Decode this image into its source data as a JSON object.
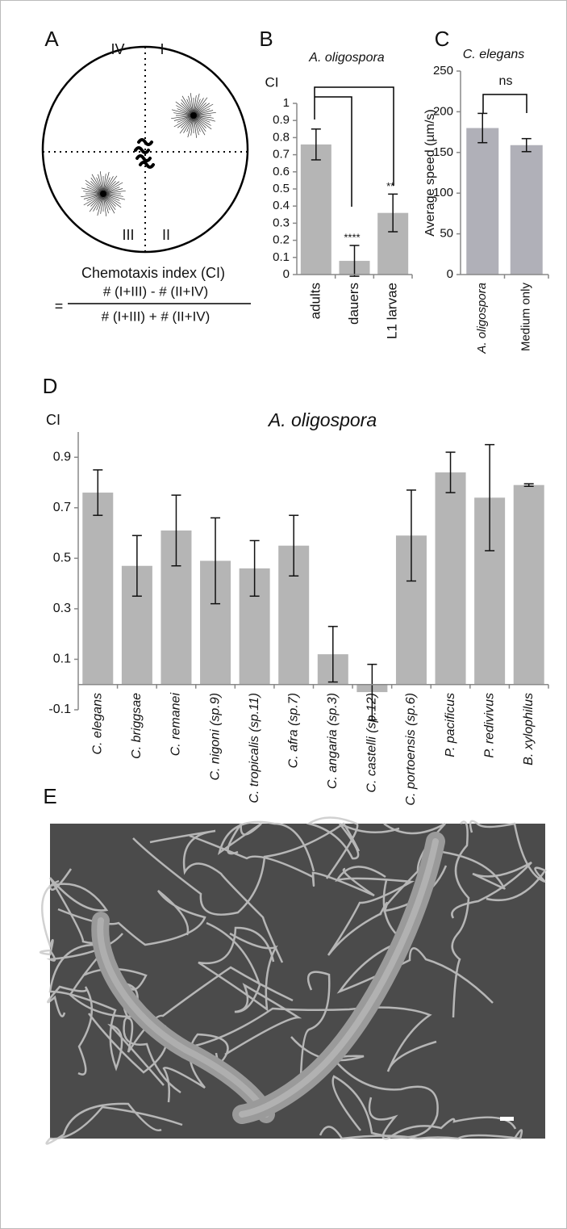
{
  "panel_labels": [
    "A",
    "B",
    "C",
    "D",
    "E"
  ],
  "diagram": {
    "quadrants": [
      "IV",
      "I",
      "III",
      "II"
    ],
    "formula_title": "Chemotaxis index (CI)",
    "equals": "=",
    "numerator": "# (I+III) -  # (II+IV)",
    "denominator": "# (I+III) + # (II+IV)"
  },
  "chart_data": [
    {
      "type": "bar",
      "title": "A. oligospora",
      "y_label": "CI",
      "color": "#b5b5b5",
      "categories": [
        "adults",
        "dauers",
        "L1 larvae"
      ],
      "values": [
        0.76,
        0.08,
        0.36
      ],
      "errors": [
        0.09,
        0.09,
        0.11
      ],
      "significance": [
        null,
        "****",
        "**"
      ],
      "ylim": [
        0,
        1
      ],
      "yticks": [
        0,
        0.1,
        0.2,
        0.3,
        0.4,
        0.5,
        0.6,
        0.7,
        0.8,
        0.9,
        1
      ]
    },
    {
      "type": "bar",
      "title": "C. elegans",
      "y_label": "Average speed (µm/s)",
      "color": "#b0b0b8",
      "categories": [
        "A. oligospora",
        "Medium only"
      ],
      "values": [
        180,
        159
      ],
      "errors": [
        18,
        8
      ],
      "annotation": "ns",
      "ylim": [
        0,
        250
      ],
      "yticks": [
        0,
        50,
        100,
        150,
        200,
        250
      ]
    },
    {
      "type": "bar",
      "title": "A. oligospora",
      "y_label": "CI",
      "color": "#b5b5b5",
      "categories": [
        "C. elegans",
        "C. briggsae",
        "C. remanei",
        "C. nigoni (sp.9)",
        "C. tropicalis (sp.11)",
        "C. afra (sp.7)",
        "C. angaria (sp.3)",
        "C. castelli (sp.12)",
        "C. portoensis (sp.6)",
        "P. pacificus",
        "P. redivivus",
        "B. xylophilus"
      ],
      "values": [
        0.76,
        0.47,
        0.61,
        0.49,
        0.46,
        0.55,
        0.12,
        -0.03,
        0.59,
        0.84,
        0.74,
        0.79
      ],
      "errors": [
        0.09,
        0.12,
        0.14,
        0.17,
        0.11,
        0.12,
        0.11,
        0.11,
        0.18,
        0.08,
        0.21,
        0.005
      ],
      "ylim": [
        -0.1,
        1.0
      ],
      "yticks": [
        -0.1,
        0.1,
        0.3,
        0.5,
        0.7,
        0.9
      ]
    }
  ]
}
